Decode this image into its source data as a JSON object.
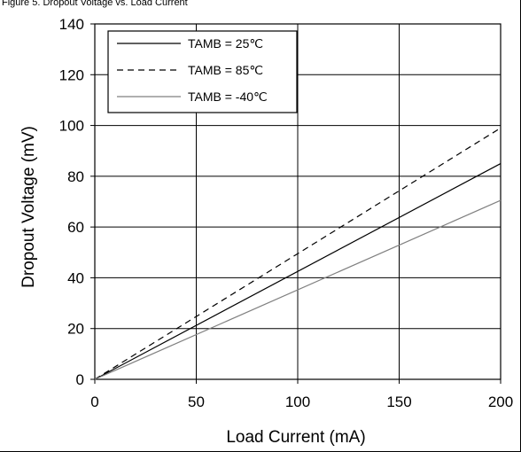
{
  "caption": "Figure 5. Dropout Voltage vs. Load Current",
  "chart_data": {
    "type": "line",
    "title": "",
    "xlabel": "Load Current (mA)",
    "ylabel": "Dropout Voltage (mV)",
    "xlim": [
      0,
      200
    ],
    "ylim": [
      0,
      140
    ],
    "xticks": [
      0,
      50,
      100,
      150,
      200
    ],
    "yticks": [
      0,
      20,
      40,
      60,
      80,
      100,
      120,
      140
    ],
    "grid": true,
    "legend": "top-left",
    "series": [
      {
        "name": "TAMB = 25℃",
        "style": "solid",
        "color": "#000000",
        "x": [
          0,
          200
        ],
        "y": [
          0,
          85
        ]
      },
      {
        "name": "TAMB = 85℃",
        "style": "dashed",
        "color": "#000000",
        "x": [
          0,
          200
        ],
        "y": [
          0,
          99
        ]
      },
      {
        "name": "TAMB = -40℃",
        "style": "solid",
        "color": "#808080",
        "x": [
          0,
          200
        ],
        "y": [
          0,
          70.5
        ]
      }
    ]
  }
}
